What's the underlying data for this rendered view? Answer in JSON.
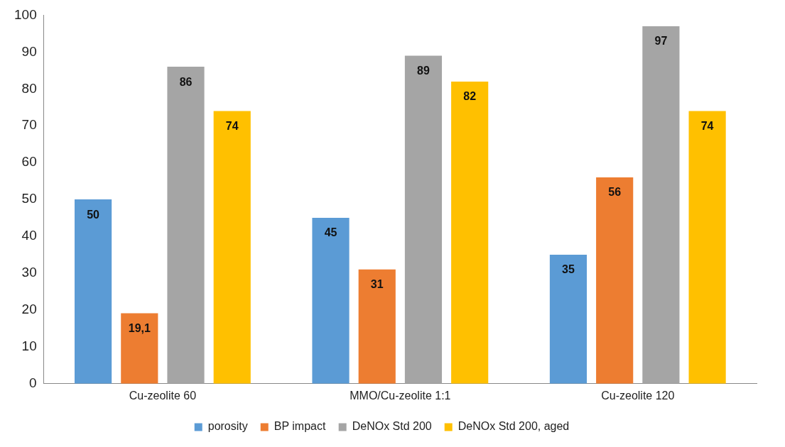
{
  "chart_data": {
    "type": "bar",
    "categories": [
      "Cu-zeolite 60",
      "MMO/Cu-zeolite 1:1",
      "Cu-zeolite 120"
    ],
    "series": [
      {
        "name": "porosity",
        "color": "#5b9bd5",
        "values": [
          50,
          45,
          35
        ],
        "value_labels": [
          "50",
          "45",
          "35"
        ]
      },
      {
        "name": "BP impact",
        "color": "#ed7d31",
        "values": [
          19.1,
          31,
          56
        ],
        "value_labels": [
          "19,1",
          "31",
          "56"
        ]
      },
      {
        "name": "DeNOx Std 200",
        "color": "#a5a5a5",
        "values": [
          86,
          89,
          97
        ],
        "value_labels": [
          "86",
          "89",
          "97"
        ]
      },
      {
        "name": "DeNOx Std 200, aged",
        "color": "#ffc000",
        "values": [
          74,
          82,
          74
        ],
        "value_labels": [
          "74",
          "82",
          "74"
        ]
      }
    ],
    "ylim": [
      0,
      100
    ],
    "yticks": [
      0,
      10,
      20,
      30,
      40,
      50,
      60,
      70,
      80,
      90,
      100
    ],
    "grid": false,
    "legend": "bottom"
  }
}
